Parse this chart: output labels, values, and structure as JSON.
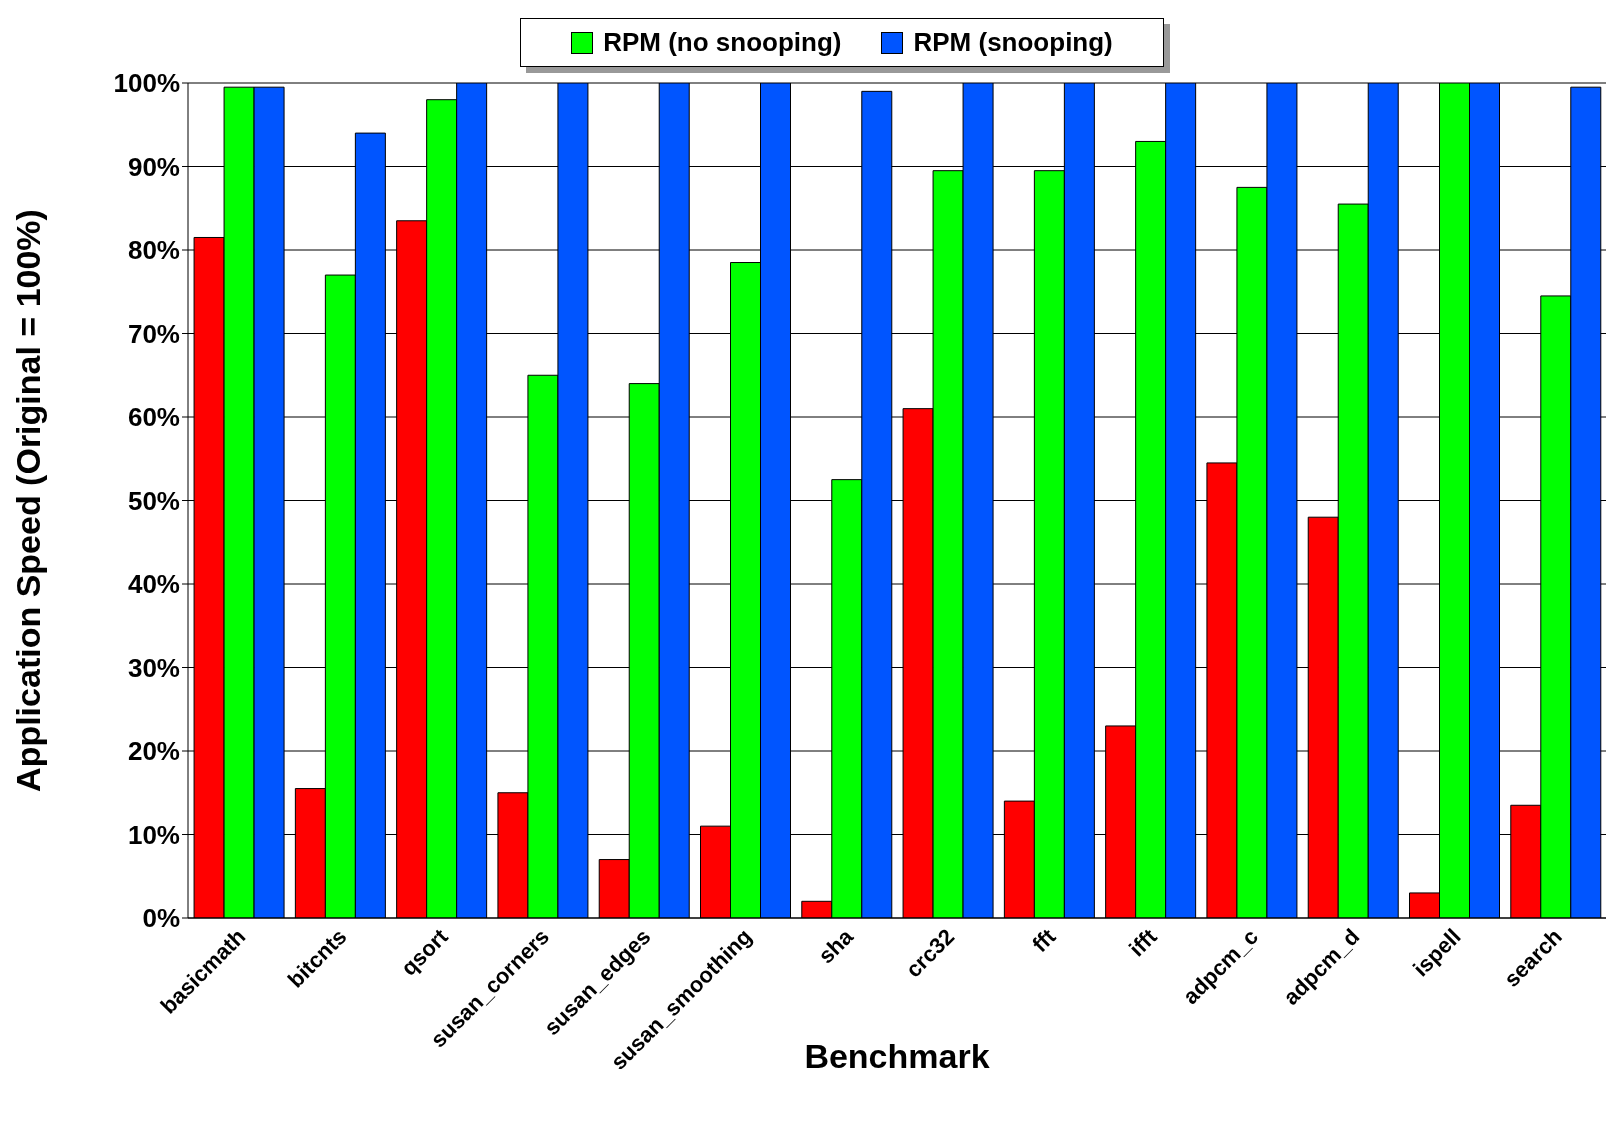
{
  "chart_data": {
    "type": "bar",
    "xlabel": "Benchmark",
    "ylabel": "Application Speed (Original = 100%)",
    "categories": [
      "basicmath",
      "bitcnts",
      "qsort",
      "susan_corners",
      "susan_edges",
      "susan_smoothing",
      "sha",
      "crc32",
      "fft",
      "ifft",
      "adpcm_c",
      "adpcm_d",
      "ispell",
      "search"
    ],
    "series": [
      {
        "color": "#ff0000",
        "values": [
          81.5,
          15.5,
          83.5,
          15,
          7,
          11,
          2,
          61,
          14,
          23,
          54.5,
          48,
          3,
          13.5
        ]
      },
      {
        "name": "RPM (no snooping)",
        "color": "#00ff00",
        "values": [
          99.5,
          77,
          98,
          65,
          64,
          78.5,
          52.5,
          89.5,
          89.5,
          93,
          87.5,
          85.5,
          100,
          74.5
        ]
      },
      {
        "name": "RPM (snooping)",
        "color": "#0055ff",
        "values": [
          99.5,
          94,
          100,
          100,
          100,
          100,
          99,
          100,
          100,
          100,
          100,
          100,
          100,
          99.5
        ]
      }
    ],
    "ylim": [
      0,
      100
    ],
    "yticks": [
      {
        "value": 0,
        "label": "0%"
      },
      {
        "value": 10,
        "label": "10%"
      },
      {
        "value": 20,
        "label": "20%"
      },
      {
        "value": 30,
        "label": "30%"
      },
      {
        "value": 40,
        "label": "40%"
      },
      {
        "value": 50,
        "label": "50%"
      },
      {
        "value": 60,
        "label": "60%"
      },
      {
        "value": 70,
        "label": "70%"
      },
      {
        "value": 80,
        "label": "80%"
      },
      {
        "value": 90,
        "label": "90%"
      },
      {
        "value": 100,
        "label": "100%"
      }
    ],
    "grid": "y",
    "legend": "top"
  }
}
